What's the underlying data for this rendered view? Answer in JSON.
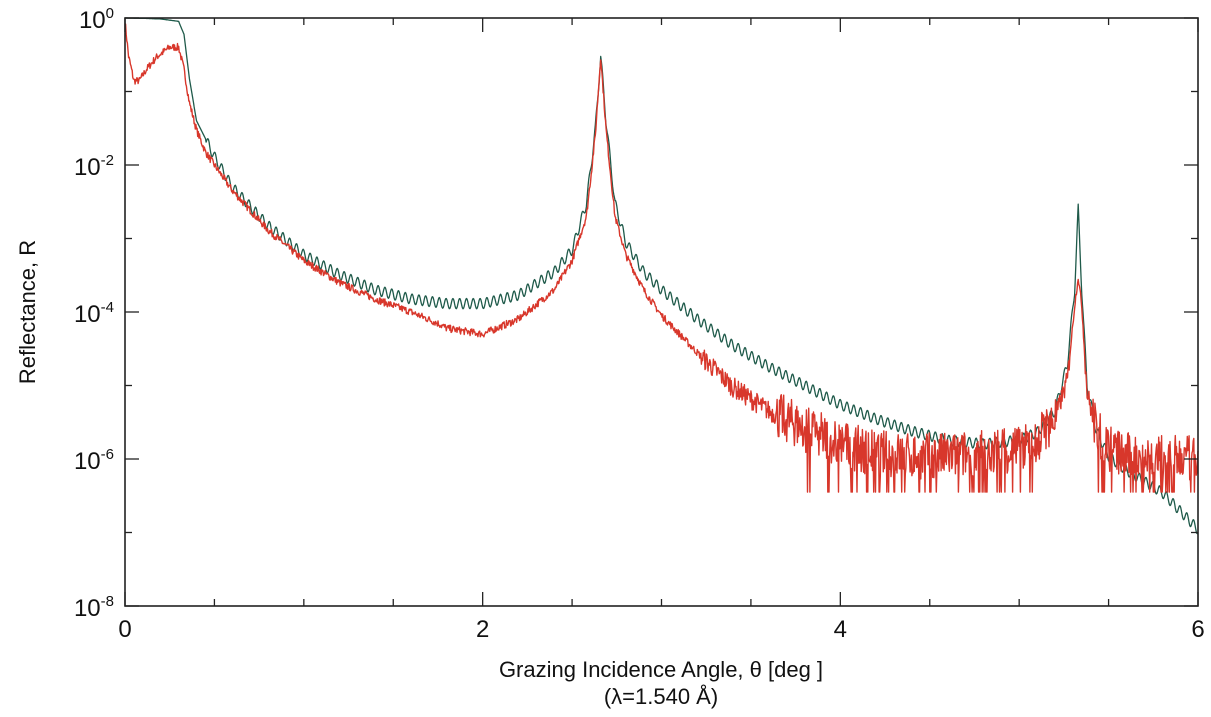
{
  "chart_data": {
    "type": "line",
    "title": "",
    "xlabel": "Grazing Incidence Angle, θ [deg ]",
    "xlabel_sub": "(λ=1.540 Å)",
    "ylabel": "Reflectance, R",
    "xlim": [
      0,
      6
    ],
    "ylim": [
      1e-08,
      1
    ],
    "yscale": "log",
    "grid": false,
    "x_ticks": [
      "0",
      "2",
      "4",
      "6"
    ],
    "y_ticks": [
      {
        "base": "10",
        "exp": "0",
        "value": 1
      },
      {
        "base": "10",
        "exp": "-2",
        "value": 0.01
      },
      {
        "base": "10",
        "exp": "-4",
        "value": 0.0001
      },
      {
        "base": "10",
        "exp": "-6",
        "value": 1e-06
      },
      {
        "base": "10",
        "exp": "-8",
        "value": 1e-08
      }
    ],
    "series": [
      {
        "role": "model",
        "color": "#1f5a4a",
        "x": [
          0.0,
          0.1,
          0.2,
          0.3,
          0.33,
          0.36,
          0.4,
          0.5,
          0.6,
          0.8,
          1.0,
          1.2,
          1.4,
          1.6,
          1.8,
          2.0,
          2.2,
          2.4,
          2.5,
          2.58,
          2.63,
          2.66,
          2.69,
          2.74,
          2.8,
          2.9,
          3.0,
          3.2,
          3.4,
          3.6,
          3.8,
          4.0,
          4.2,
          4.4,
          4.6,
          4.8,
          5.0,
          5.1,
          5.2,
          5.27,
          5.31,
          5.33,
          5.35,
          5.38,
          5.43,
          5.5,
          5.6,
          5.8,
          6.0
        ],
        "y": [
          1.0,
          0.99,
          0.97,
          0.9,
          0.6,
          0.15,
          0.04,
          0.013,
          0.005,
          0.0015,
          0.0006,
          0.00032,
          0.0002,
          0.00015,
          0.00013,
          0.00013,
          0.00017,
          0.00035,
          0.0007,
          0.003,
          0.03,
          0.3,
          0.04,
          0.003,
          0.0009,
          0.00035,
          0.0002,
          8e-05,
          3.5e-05,
          1.8e-05,
          1e-05,
          5.5e-06,
          3.5e-06,
          2.4e-06,
          1.8e-06,
          1.6e-06,
          1.8e-06,
          2.3e-06,
          4.5e-06,
          2e-05,
          0.0002,
          0.0025,
          0.0002,
          1e-05,
          2.5e-06,
          1.1e-06,
          7e-07,
          3.5e-07,
          1.1e-07
        ]
      },
      {
        "role": "measured",
        "color": "#d8372b",
        "x": [
          0.0,
          0.02,
          0.05,
          0.08,
          0.12,
          0.18,
          0.25,
          0.3,
          0.33,
          0.36,
          0.4,
          0.45,
          0.5,
          0.6,
          0.8,
          1.0,
          1.2,
          1.4,
          1.6,
          1.75,
          1.8,
          2.0,
          2.2,
          2.4,
          2.5,
          2.58,
          2.63,
          2.66,
          2.69,
          2.74,
          2.8,
          2.9,
          3.0,
          3.2,
          3.4,
          3.6,
          3.8,
          4.0,
          4.2,
          4.4,
          4.6,
          4.8,
          5.0,
          5.1,
          5.2,
          5.27,
          5.31,
          5.33,
          5.35,
          5.38,
          5.43,
          5.5,
          5.6,
          5.8,
          6.0
        ],
        "y": [
          0.9,
          0.3,
          0.14,
          0.14,
          0.2,
          0.3,
          0.4,
          0.4,
          0.2,
          0.07,
          0.03,
          0.015,
          0.01,
          0.0045,
          0.0013,
          0.0005,
          0.00025,
          0.00015,
          0.0001,
          7e-05,
          6e-05,
          5e-05,
          8e-05,
          0.0002,
          0.0005,
          0.002,
          0.025,
          0.3,
          0.03,
          0.002,
          0.0006,
          0.0002,
          9e-05,
          2.8e-05,
          9.5e-06,
          4.5e-06,
          2.6e-06,
          1.6e-06,
          1.2e-06,
          1.1e-06,
          1.1e-06,
          1.2e-06,
          1.4e-06,
          1.9e-06,
          3.5e-06,
          1.2e-05,
          0.00012,
          0.0003,
          0.00012,
          8e-06,
          2.5e-06,
          1.4e-06,
          1.1e-06,
          1e-06,
          1e-06
        ]
      }
    ]
  }
}
